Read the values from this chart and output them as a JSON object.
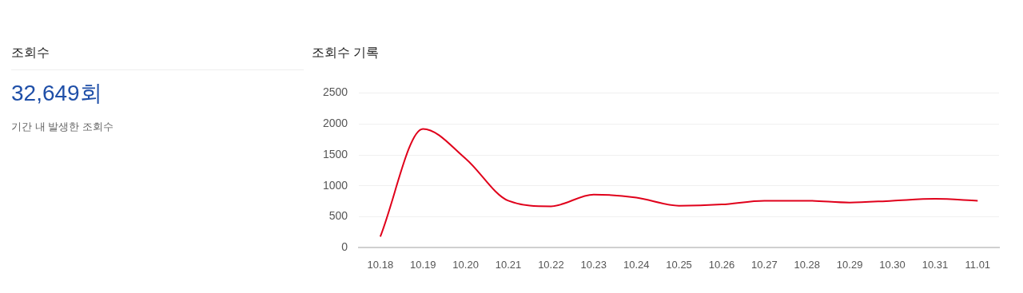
{
  "chart_data": [
    {
      "type": "other",
      "title": "조회수",
      "annotations": [
        "32,649회",
        "기간 내 발생한 조회수"
      ]
    },
    {
      "type": "line",
      "title": "조회수 기록",
      "categories": [
        "10.18",
        "10.19",
        "10.20",
        "10.21",
        "10.22",
        "10.23",
        "10.24",
        "10.25",
        "10.26",
        "10.27",
        "10.28",
        "10.29",
        "10.30",
        "10.31",
        "11.01"
      ],
      "series": [
        {
          "color": "#e0001b",
          "values": [
            180,
            1920,
            1440,
            760,
            670,
            860,
            810,
            680,
            700,
            760,
            760,
            730,
            760,
            790,
            760
          ]
        }
      ],
      "ylim": [
        0,
        2500
      ],
      "yticks": [
        0,
        500,
        1000,
        1500,
        2000,
        2500
      ],
      "grid": "y",
      "legend": false,
      "marker": "none",
      "line_style": "solid"
    }
  ]
}
